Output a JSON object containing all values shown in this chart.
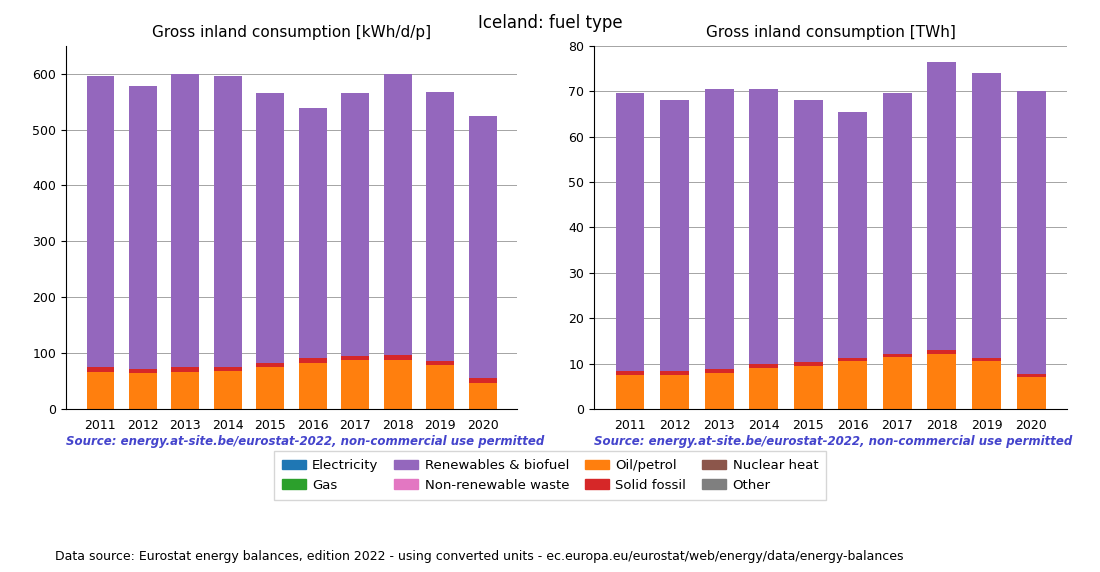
{
  "years": [
    2011,
    2012,
    2013,
    2014,
    2015,
    2016,
    2017,
    2018,
    2019,
    2020
  ],
  "title": "Iceland: fuel type",
  "left_title": "Gross inland consumption [kWh/d/p]",
  "right_title": "Gross inland consumption [TWh]",
  "source_text": "Source: energy.at-site.be/eurostat-2022, non-commercial use permitted",
  "footer_text": "Data source: Eurostat energy balances, edition 2022 - using converted units - ec.europa.eu/eurostat/web/energy/data/energy-balances",
  "left_ylim": [
    0,
    650
  ],
  "right_ylim": [
    0,
    80
  ],
  "left_yticks": [
    0,
    100,
    200,
    300,
    400,
    500,
    600
  ],
  "right_yticks": [
    0,
    10,
    20,
    30,
    40,
    50,
    60,
    70,
    80
  ],
  "fuel_types": [
    "Electricity",
    "Oil/petrol",
    "Gas",
    "Solid fossil",
    "Renewables & biofuel",
    "Nuclear heat",
    "Non-renewable waste",
    "Other"
  ],
  "colors": {
    "Electricity": "#1f77b4",
    "Oil/petrol": "#ff7f0e",
    "Gas": "#2ca02c",
    "Solid fossil": "#d62728",
    "Renewables & biofuel": "#9467bd",
    "Nuclear heat": "#8c564b",
    "Non-renewable waste": "#e377c2",
    "Other": "#7f7f7f"
  },
  "left_data": {
    "Electricity": [
      0,
      0,
      0,
      0,
      0,
      0,
      0,
      0,
      0,
      0
    ],
    "Oil/petrol": [
      67,
      65,
      67,
      68,
      75,
      82,
      87,
      88,
      78,
      47
    ],
    "Gas": [
      0,
      0,
      0,
      0,
      0,
      0,
      0,
      0,
      0,
      0
    ],
    "Solid fossil": [
      8,
      7,
      8,
      8,
      8,
      10,
      8,
      8,
      8,
      8
    ],
    "Renewables & biofuel": [
      520,
      506,
      525,
      520,
      482,
      447,
      470,
      504,
      481,
      470
    ],
    "Nuclear heat": [
      0,
      0,
      0,
      0,
      0,
      0,
      0,
      0,
      0,
      0
    ],
    "Non-renewable waste": [
      0,
      0,
      0,
      0,
      0,
      0,
      0,
      0,
      0,
      0
    ],
    "Other": [
      0,
      0,
      0,
      0,
      0,
      0,
      0,
      0,
      0,
      0
    ]
  },
  "right_data": {
    "Electricity": [
      0,
      0,
      0,
      0,
      0,
      0,
      0,
      0,
      0,
      0
    ],
    "Oil/petrol": [
      7.5,
      7.5,
      8.0,
      9.0,
      9.5,
      10.5,
      11.5,
      12.0,
      10.5,
      7.0
    ],
    "Gas": [
      0,
      0,
      0,
      0,
      0,
      0,
      0,
      0,
      0,
      0
    ],
    "Solid fossil": [
      0.9,
      0.9,
      0.9,
      1.0,
      0.8,
      0.8,
      0.7,
      1.0,
      0.8,
      0.7
    ],
    "Renewables & biofuel": [
      61.1,
      59.6,
      61.6,
      60.5,
      57.7,
      54.2,
      57.3,
      63.5,
      62.7,
      62.3
    ],
    "Nuclear heat": [
      0,
      0,
      0,
      0,
      0,
      0,
      0,
      0,
      0,
      0
    ],
    "Non-renewable waste": [
      0,
      0,
      0,
      0,
      0,
      0,
      0,
      0,
      0,
      0
    ],
    "Other": [
      0,
      0,
      0,
      0,
      0,
      0,
      0,
      0,
      0,
      0
    ]
  },
  "bar_width": 0.65,
  "source_color": "#4444cc",
  "source_fontsize": 8.5,
  "footer_fontsize": 9,
  "title_fontsize": 12,
  "axis_title_fontsize": 11,
  "legend_fontsize": 9.5
}
